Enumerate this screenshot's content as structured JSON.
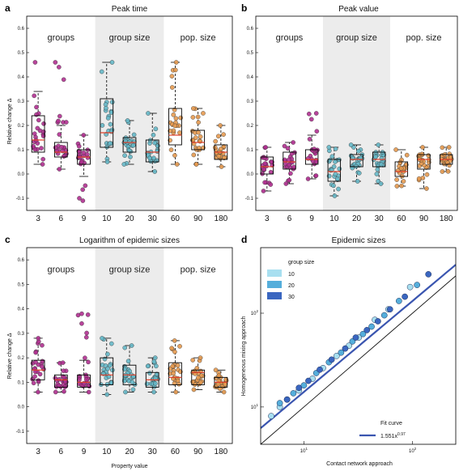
{
  "chart_data": [
    {
      "panel": "a",
      "type": "box",
      "title": "Peak time",
      "xlabel": "",
      "ylabel": "Relative change  Δ",
      "ylim": [
        -0.15,
        0.65
      ],
      "yticks": [
        "-0.1",
        "0.0",
        "0.1",
        "0.2",
        "0.3",
        "0.4",
        "0.5",
        "0.6"
      ],
      "groups": [
        "groups",
        "group size",
        "pop. size"
      ],
      "categories": [
        "3",
        "6",
        "9",
        "10",
        "20",
        "30",
        "60",
        "90",
        "180"
      ],
      "point_colors": [
        "#b03090",
        "#b03090",
        "#b03090",
        "#66b8c8",
        "#66b8c8",
        "#66b8c8",
        "#e59a50",
        "#e59a50",
        "#e59a50"
      ],
      "boxes": [
        {
          "q1": 0.09,
          "median": 0.14,
          "q3": 0.24,
          "whisker_low": 0.04,
          "whisker_high": 0.34,
          "max": 0.46
        },
        {
          "q1": 0.07,
          "median": 0.09,
          "q3": 0.13,
          "whisker_low": 0.02,
          "whisker_high": 0.2,
          "max": 0.46
        },
        {
          "q1": 0.04,
          "median": 0.07,
          "q3": 0.1,
          "whisker_low": -0.01,
          "whisker_high": 0.16,
          "min": -0.11
        },
        {
          "q1": 0.11,
          "median": 0.17,
          "q3": 0.31,
          "whisker_low": 0.05,
          "whisker_high": 0.46
        },
        {
          "q1": 0.09,
          "median": 0.13,
          "q3": 0.15,
          "whisker_low": 0.04,
          "whisker_high": 0.22
        },
        {
          "q1": 0.05,
          "median": 0.09,
          "q3": 0.14,
          "whisker_low": 0.01,
          "whisker_high": 0.25
        },
        {
          "q1": 0.12,
          "median": 0.16,
          "q3": 0.27,
          "whisker_low": 0.04,
          "whisker_high": 0.46
        },
        {
          "q1": 0.1,
          "median": 0.13,
          "q3": 0.18,
          "whisker_low": 0.04,
          "whisker_high": 0.27
        },
        {
          "q1": 0.06,
          "median": 0.09,
          "q3": 0.12,
          "whisker_low": 0.03,
          "whisker_high": 0.2
        }
      ]
    },
    {
      "panel": "b",
      "type": "box",
      "title": "Peak value",
      "xlabel": "",
      "ylabel": "",
      "ylim": [
        -0.15,
        0.65
      ],
      "yticks": [
        "-0.1",
        "0.0",
        "0.1",
        "0.2",
        "0.3",
        "0.4",
        "0.5",
        "0.6"
      ],
      "groups": [
        "groups",
        "group size",
        "pop. size"
      ],
      "categories": [
        "3",
        "6",
        "9",
        "10",
        "20",
        "30",
        "60",
        "90",
        "180"
      ],
      "point_colors": [
        "#b03090",
        "#b03090",
        "#b03090",
        "#66b8c8",
        "#66b8c8",
        "#66b8c8",
        "#e59a50",
        "#e59a50",
        "#e59a50"
      ],
      "boxes": [
        {
          "q1": 0.0,
          "median": 0.03,
          "q3": 0.07,
          "whisker_low": -0.07,
          "whisker_high": 0.11
        },
        {
          "q1": 0.02,
          "median": 0.05,
          "q3": 0.09,
          "whisker_low": -0.04,
          "whisker_high": 0.13
        },
        {
          "q1": 0.04,
          "median": 0.06,
          "q3": 0.1,
          "whisker_low": -0.02,
          "whisker_high": 0.16,
          "max": 0.25
        },
        {
          "q1": -0.03,
          "median": 0.01,
          "q3": 0.06,
          "whisker_low": -0.09,
          "whisker_high": 0.11
        },
        {
          "q1": 0.03,
          "median": 0.06,
          "q3": 0.08,
          "whisker_low": -0.03,
          "whisker_high": 0.12
        },
        {
          "q1": 0.03,
          "median": 0.06,
          "q3": 0.09,
          "whisker_low": -0.04,
          "whisker_high": 0.12
        },
        {
          "q1": -0.01,
          "median": 0.01,
          "q3": 0.05,
          "whisker_low": -0.05,
          "whisker_high": 0.1
        },
        {
          "q1": 0.02,
          "median": 0.06,
          "q3": 0.08,
          "whisker_low": -0.06,
          "whisker_high": 0.11
        },
        {
          "q1": 0.04,
          "median": 0.06,
          "q3": 0.08,
          "whisker_low": 0.01,
          "whisker_high": 0.11
        }
      ]
    },
    {
      "panel": "c",
      "type": "box",
      "title": "Logarithm of epidemic sizes",
      "xlabel": "Property value",
      "ylabel": "Relative change  Δ",
      "ylim": [
        -0.15,
        0.65
      ],
      "yticks": [
        "-0.1",
        "0.0",
        "0.1",
        "0.2",
        "0.3",
        "0.4",
        "0.5",
        "0.6"
      ],
      "groups": [
        "groups",
        "group size",
        "pop. size"
      ],
      "categories": [
        "3",
        "6",
        "9",
        "10",
        "20",
        "30",
        "60",
        "90",
        "180"
      ],
      "point_colors": [
        "#b03090",
        "#b03090",
        "#b03090",
        "#66b8c8",
        "#66b8c8",
        "#66b8c8",
        "#e59a50",
        "#e59a50",
        "#e59a50"
      ],
      "boxes": [
        {
          "q1": 0.11,
          "median": 0.15,
          "q3": 0.19,
          "whisker_low": 0.06,
          "whisker_high": 0.28
        },
        {
          "q1": 0.08,
          "median": 0.11,
          "q3": 0.13,
          "whisker_low": 0.06,
          "whisker_high": 0.18
        },
        {
          "q1": 0.08,
          "median": 0.1,
          "q3": 0.13,
          "whisker_low": 0.06,
          "whisker_high": 0.19,
          "max": 0.38
        },
        {
          "q1": 0.09,
          "median": 0.13,
          "q3": 0.2,
          "whisker_low": 0.05,
          "whisker_high": 0.28
        },
        {
          "q1": 0.09,
          "median": 0.13,
          "q3": 0.17,
          "whisker_low": 0.06,
          "whisker_high": 0.25
        },
        {
          "q1": 0.08,
          "median": 0.11,
          "q3": 0.14,
          "whisker_low": 0.06,
          "whisker_high": 0.2
        },
        {
          "q1": 0.09,
          "median": 0.12,
          "q3": 0.18,
          "whisker_low": 0.06,
          "whisker_high": 0.27
        },
        {
          "q1": 0.09,
          "median": 0.14,
          "q3": 0.15,
          "whisker_low": 0.07,
          "whisker_high": 0.2
        },
        {
          "q1": 0.08,
          "median": 0.1,
          "q3": 0.12,
          "whisker_low": 0.06,
          "whisker_high": 0.15
        }
      ]
    },
    {
      "panel": "d",
      "type": "scatter",
      "title": "Epidemic sizes",
      "xlabel": "Contact network approach",
      "ylabel": "Homogeneous mixing approach",
      "xscale": "log",
      "yscale": "log",
      "xlim": [
        4,
        250
      ],
      "ylim": [
        4,
        500
      ],
      "xticks": [
        {
          "value": 10,
          "base": "10",
          "exp": "1"
        },
        {
          "value": 100,
          "base": "10",
          "exp": "2"
        }
      ],
      "yticks": [
        {
          "value": 10,
          "base": "10",
          "exp": "1"
        },
        {
          "value": 100,
          "base": "10",
          "exp": "2"
        }
      ],
      "legend_title": "group size",
      "legend_position": "top-left",
      "series": [
        {
          "name": "10",
          "color": "#a8dff0",
          "x": [
            5,
            6,
            7,
            9,
            12,
            15,
            20,
            26,
            32,
            45,
            60,
            95
          ],
          "y": [
            8,
            10,
            12,
            15,
            20,
            26,
            35,
            45,
            55,
            85,
            110,
            190
          ]
        },
        {
          "name": "20",
          "color": "#55aedb",
          "x": [
            6,
            8,
            10,
            13,
            17,
            22,
            28,
            35,
            42,
            55,
            75,
            110
          ],
          "y": [
            11,
            14,
            17,
            23,
            30,
            38,
            50,
            60,
            72,
            95,
            135,
            200
          ]
        },
        {
          "name": "30",
          "color": "#3a66c0",
          "x": [
            7,
            9,
            11,
            14,
            18,
            24,
            30,
            38,
            48,
            62,
            85,
            140
          ],
          "y": [
            12,
            16,
            19,
            25,
            32,
            42,
            55,
            66,
            82,
            110,
            150,
            260
          ]
        }
      ],
      "fit_label": "Fit curve",
      "fit_equation_base": "1.551x",
      "fit_equation_exp": "0.97",
      "fit": {
        "coef": 1.551,
        "exp": 0.97,
        "color": "#3a55b0"
      },
      "identity_line": true
    }
  ]
}
